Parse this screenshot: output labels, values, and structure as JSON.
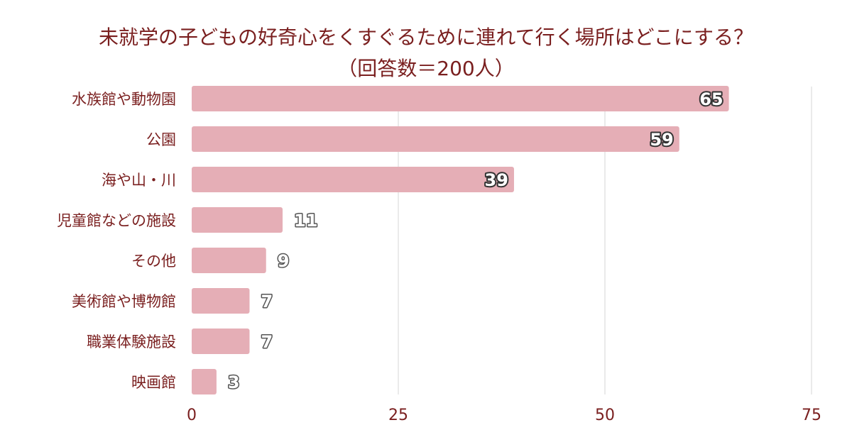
{
  "chart_data": {
    "type": "bar",
    "orientation": "horizontal",
    "title": "未就学の子どもの好奇心をくすぐるために連れて行く場所はどこにする？",
    "subtitle": "（回答数＝200人）",
    "categories": [
      "水族館や動物園",
      "公園",
      "海や山・川",
      "児童館などの施設",
      "その他",
      "美術館や博物館",
      "職業体験施設",
      "映画館"
    ],
    "values": [
      65,
      59,
      39,
      11,
      9,
      7,
      7,
      3
    ],
    "xlim": [
      0,
      75
    ],
    "xticks": [
      "0",
      "25",
      "50",
      "75"
    ],
    "grid": true,
    "legend": "none",
    "colors": {
      "bar": "#e5aeb6",
      "text": "#7a1f1f",
      "label_inside_fill": "#ffffff",
      "label_inside_stroke": "#333333",
      "label_outside_fill": "#ffffff",
      "label_outside_stroke": "#555555",
      "grid": "#dcdcdc"
    }
  }
}
